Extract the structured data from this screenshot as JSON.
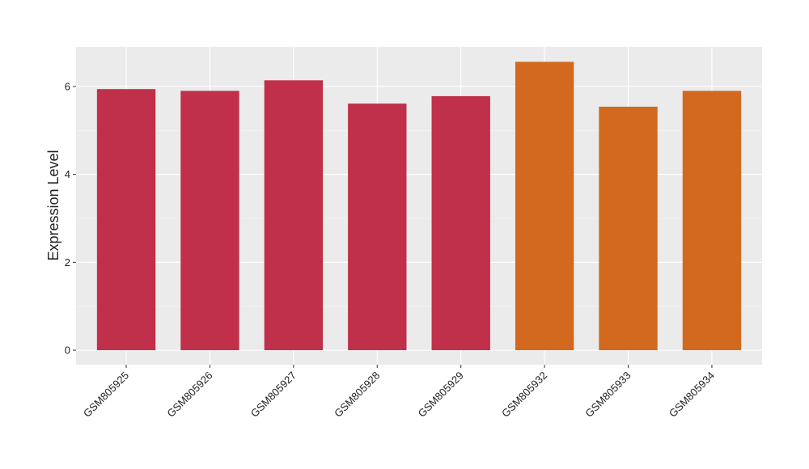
{
  "chart_data": {
    "type": "bar",
    "y_label": "Expression Level",
    "categories": [
      "GSM805925",
      "GSM805926",
      "GSM805927",
      "GSM805928",
      "GSM805929",
      "GSM805932",
      "GSM805933",
      "GSM805934"
    ],
    "values": [
      5.94,
      5.9,
      6.14,
      5.61,
      5.78,
      6.56,
      5.54,
      5.9
    ],
    "colors": [
      "#c0304a",
      "#c0304a",
      "#c0304a",
      "#c0304a",
      "#c0304a",
      "#d2691e",
      "#d2691e",
      "#d2691e"
    ],
    "ylim": [
      -0.33,
      6.9
    ],
    "yticks": [
      0,
      2,
      4,
      6
    ],
    "minor_yticks": [
      1,
      3,
      5
    ],
    "grid": true
  }
}
